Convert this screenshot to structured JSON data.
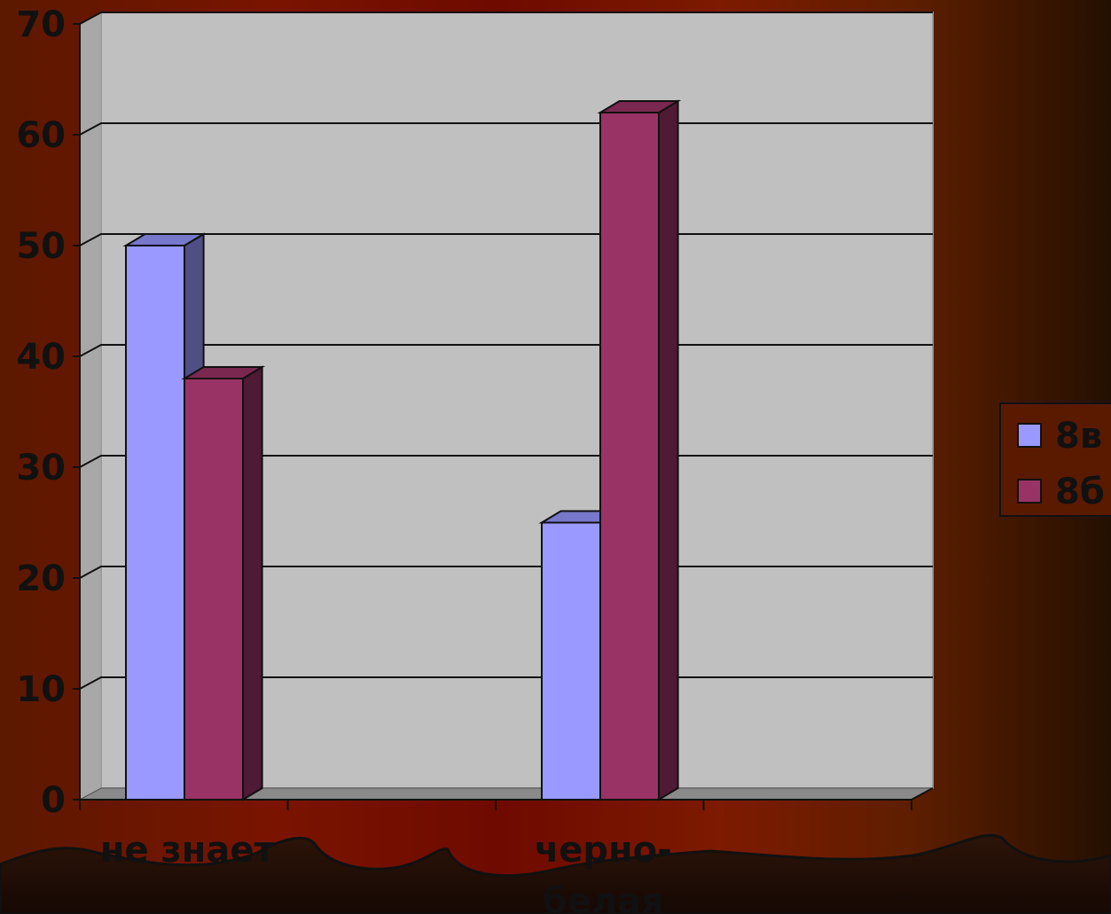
{
  "chart_data": {
    "type": "bar",
    "categories": [
      "не знает",
      "",
      "черно-\nбелая",
      ""
    ],
    "category_lines": [
      [
        "не знает"
      ],
      [],
      [
        "черно-",
        "белая"
      ],
      []
    ],
    "series": [
      {
        "name": "8в",
        "values": [
          50,
          null,
          25,
          null
        ],
        "color": "#9999FF",
        "side_color": "#4F4F86",
        "top_color": "#7777CC"
      },
      {
        "name": "8б",
        "values": [
          38,
          null,
          62,
          null
        ],
        "color": "#993366",
        "side_color": "#4E1A34",
        "top_color": "#7A2850"
      }
    ],
    "ylim": [
      0,
      70
    ],
    "yticks": [
      0,
      10,
      20,
      30,
      40,
      50,
      60,
      70
    ],
    "title": "",
    "xlabel": "",
    "ylabel": "",
    "grid": true,
    "legend_position": "right",
    "background_colors": {
      "plot_wall": "#C0C0C0",
      "floor": "#8A8A8A",
      "page": "#5A1A00"
    }
  }
}
